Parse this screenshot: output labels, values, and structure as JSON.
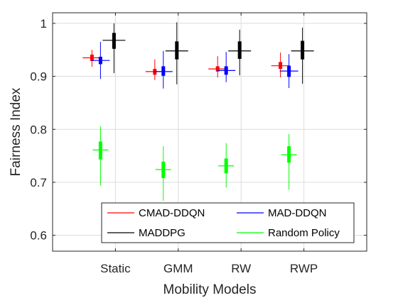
{
  "chart_data": {
    "type": "box",
    "xlabel": "Mobility Models",
    "ylabel": "Fairness Index",
    "categories": [
      "Static",
      "GMM",
      "RW",
      "RWP"
    ],
    "ylim": [
      0.57,
      1.02
    ],
    "yticks": [
      0.6,
      0.7,
      0.8,
      0.9,
      1
    ],
    "ytick_labels": [
      "0.6",
      "0.7",
      "0.8",
      "0.9",
      "1"
    ],
    "grid": true,
    "legend_position": "bottom-right",
    "legend_columns": 2,
    "series": [
      {
        "name": "CMAD-DDQN",
        "color": "#ff0000",
        "stats": [
          {
            "min": 0.918,
            "q1": 0.929,
            "median": 0.935,
            "q3": 0.941,
            "max": 0.95
          },
          {
            "min": 0.893,
            "q1": 0.903,
            "median": 0.909,
            "q3": 0.914,
            "max": 0.932
          },
          {
            "min": 0.898,
            "q1": 0.909,
            "median": 0.914,
            "q3": 0.919,
            "max": 0.938
          },
          {
            "min": 0.898,
            "q1": 0.914,
            "median": 0.92,
            "q3": 0.927,
            "max": 0.945
          }
        ]
      },
      {
        "name": "MAD-DDQN",
        "color": "#0000ff",
        "stats": [
          {
            "min": 0.895,
            "q1": 0.923,
            "median": 0.93,
            "q3": 0.937,
            "max": 0.965
          },
          {
            "min": 0.877,
            "q1": 0.901,
            "median": 0.909,
            "q3": 0.919,
            "max": 0.948
          },
          {
            "min": 0.889,
            "q1": 0.903,
            "median": 0.911,
            "q3": 0.919,
            "max": 0.946
          },
          {
            "min": 0.878,
            "q1": 0.899,
            "median": 0.91,
            "q3": 0.92,
            "max": 0.942
          }
        ]
      },
      {
        "name": "MADDPG",
        "color": "#000000",
        "stats": [
          {
            "min": 0.906,
            "q1": 0.952,
            "median": 0.968,
            "q3": 0.982,
            "max": 1.0
          },
          {
            "min": 0.885,
            "q1": 0.932,
            "median": 0.948,
            "q3": 0.966,
            "max": 1.002
          },
          {
            "min": 0.902,
            "q1": 0.933,
            "median": 0.948,
            "q3": 0.966,
            "max": 0.988
          },
          {
            "min": 0.886,
            "q1": 0.932,
            "median": 0.948,
            "q3": 0.967,
            "max": 0.992
          }
        ]
      },
      {
        "name": "Random Policy",
        "color": "#00ff00",
        "stats": [
          {
            "min": 0.694,
            "q1": 0.743,
            "median": 0.761,
            "q3": 0.777,
            "max": 0.806
          },
          {
            "min": 0.665,
            "q1": 0.708,
            "median": 0.724,
            "q3": 0.739,
            "max": 0.768
          },
          {
            "min": 0.69,
            "q1": 0.717,
            "median": 0.731,
            "q3": 0.745,
            "max": 0.774
          },
          {
            "min": 0.686,
            "q1": 0.737,
            "median": 0.752,
            "q3": 0.768,
            "max": 0.791
          }
        ]
      }
    ]
  }
}
